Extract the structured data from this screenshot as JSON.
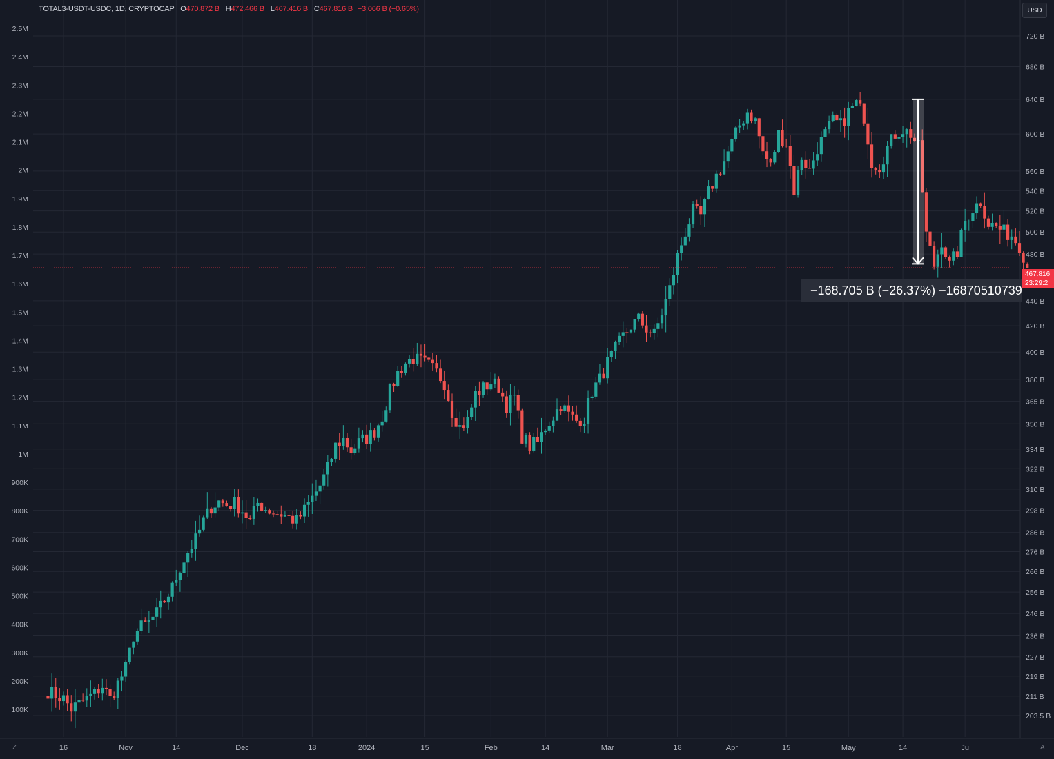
{
  "header": {
    "symbol": "TOTAL3-USDT-USDC, 1D, CRYPTOCAP",
    "open_label": "O",
    "open": "470.872 B",
    "high_label": "H",
    "high": "472.466 B",
    "low_label": "L",
    "low": "467.416 B",
    "close_label": "C",
    "close": "467.816 B",
    "change": "−3.066 B (−0.65%)"
  },
  "currency": "USD",
  "price_tag": {
    "price": "467.816",
    "countdown": "23:29:2"
  },
  "measure": {
    "text": "−168.705 B (−26.37%) −16870510739"
  },
  "corner": {
    "left": "Z",
    "right": "A"
  },
  "colors": {
    "background": "#161a25",
    "grid": "#242834",
    "up": "#26a69a",
    "down": "#ef5350",
    "axis_text": "#b2b5be",
    "price_line": "#f23645"
  },
  "chart_data": {
    "type": "candlestick",
    "title": "TOTAL3-USDT-USDC, 1D, CRYPTOCAP",
    "right_axis": {
      "scale": "log",
      "unit": "B",
      "ticks": [
        "720 B",
        "680 B",
        "640 B",
        "600 B",
        "560 B",
        "540 B",
        "520 B",
        "500 B",
        "480 B",
        "440 B",
        "420 B",
        "400 B",
        "380 B",
        "365 B",
        "350 B",
        "334 B",
        "322 B",
        "310 B",
        "298 B",
        "286 B",
        "276 B",
        "266 B",
        "256 B",
        "246 B",
        "236 B",
        "227 B",
        "219 B",
        "211 B",
        "203.5 B"
      ],
      "tick_values": [
        720,
        680,
        640,
        600,
        560,
        540,
        520,
        500,
        480,
        440,
        420,
        400,
        380,
        365,
        350,
        334,
        322,
        310,
        298,
        286,
        276,
        266,
        256,
        246,
        236,
        227,
        219,
        211,
        203.5
      ],
      "range": [
        203.5,
        720
      ]
    },
    "left_axis": {
      "ticks": [
        "2.5M",
        "2.4M",
        "2.3M",
        "2.2M",
        "2.1M",
        "2M",
        "1.9M",
        "1.8M",
        "1.7M",
        "1.6M",
        "1.5M",
        "1.4M",
        "1.3M",
        "1.2M",
        "1.1M",
        "1M",
        "900K",
        "800K",
        "700K",
        "600K",
        "500K",
        "400K",
        "300K",
        "200K",
        "100K"
      ]
    },
    "x_axis": {
      "ticks": [
        "16",
        "Nov",
        "14",
        "Dec",
        "18",
        "2024",
        "15",
        "Feb",
        "14",
        "Mar",
        "18",
        "Apr",
        "15",
        "May",
        "14",
        "Ju"
      ],
      "tick_days": [
        0,
        16,
        29,
        46,
        64,
        78,
        93,
        110,
        124,
        140,
        158,
        172,
        186,
        202,
        216,
        232
      ],
      "start_date": "2023-10-16"
    },
    "candle_anchors_close": [
      [
        -4,
        213
      ],
      [
        0,
        210
      ],
      [
        2,
        206
      ],
      [
        4,
        208
      ],
      [
        6,
        210
      ],
      [
        8,
        212
      ],
      [
        10,
        215
      ],
      [
        12,
        210
      ],
      [
        14,
        216
      ],
      [
        16,
        222
      ],
      [
        18,
        236
      ],
      [
        20,
        240
      ],
      [
        22,
        242
      ],
      [
        24,
        246
      ],
      [
        26,
        252
      ],
      [
        28,
        258
      ],
      [
        30,
        268
      ],
      [
        32,
        276
      ],
      [
        34,
        282
      ],
      [
        36,
        292
      ],
      [
        38,
        300
      ],
      [
        40,
        303
      ],
      [
        42,
        301
      ],
      [
        44,
        302
      ],
      [
        46,
        298
      ],
      [
        48,
        292
      ],
      [
        50,
        302
      ],
      [
        52,
        299
      ],
      [
        54,
        297
      ],
      [
        56,
        296
      ],
      [
        58,
        294
      ],
      [
        60,
        292
      ],
      [
        62,
        298
      ],
      [
        64,
        305
      ],
      [
        66,
        312
      ],
      [
        68,
        322
      ],
      [
        70,
        336
      ],
      [
        72,
        340
      ],
      [
        74,
        333
      ],
      [
        76,
        338
      ],
      [
        78,
        341
      ],
      [
        80,
        345
      ],
      [
        82,
        355
      ],
      [
        84,
        372
      ],
      [
        86,
        385
      ],
      [
        88,
        392
      ],
      [
        90,
        395
      ],
      [
        92,
        393
      ],
      [
        94,
        390
      ],
      [
        96,
        385
      ],
      [
        98,
        378
      ],
      [
        100,
        358
      ],
      [
        102,
        348
      ],
      [
        104,
        352
      ],
      [
        106,
        370
      ],
      [
        108,
        374
      ],
      [
        110,
        378
      ],
      [
        112,
        375
      ],
      [
        114,
        362
      ],
      [
        116,
        368
      ],
      [
        118,
        342
      ],
      [
        120,
        336
      ],
      [
        122,
        338
      ],
      [
        124,
        348
      ],
      [
        126,
        355
      ],
      [
        128,
        363
      ],
      [
        130,
        356
      ],
      [
        132,
        352
      ],
      [
        134,
        354
      ],
      [
        136,
        372
      ],
      [
        138,
        380
      ],
      [
        140,
        392
      ],
      [
        142,
        402
      ],
      [
        144,
        412
      ],
      [
        146,
        420
      ],
      [
        148,
        425
      ],
      [
        150,
        418
      ],
      [
        152,
        413
      ],
      [
        154,
        430
      ],
      [
        156,
        450
      ],
      [
        158,
        478
      ],
      [
        160,
        500
      ],
      [
        162,
        520
      ],
      [
        164,
        515
      ],
      [
        166,
        538
      ],
      [
        168,
        555
      ],
      [
        170,
        570
      ],
      [
        172,
        590
      ],
      [
        174,
        610
      ],
      [
        176,
        625
      ],
      [
        178,
        615
      ],
      [
        180,
        580
      ],
      [
        182,
        565
      ],
      [
        184,
        600
      ],
      [
        186,
        590
      ],
      [
        188,
        540
      ],
      [
        190,
        575
      ],
      [
        192,
        560
      ],
      [
        194,
        585
      ],
      [
        196,
        600
      ],
      [
        198,
        615
      ],
      [
        200,
        610
      ],
      [
        202,
        625
      ],
      [
        204,
        635
      ],
      [
        206,
        620
      ],
      [
        208,
        570
      ],
      [
        210,
        565
      ],
      [
        212,
        585
      ],
      [
        214,
        600
      ],
      [
        216,
        605
      ],
      [
        218,
        600
      ],
      [
        220,
        585
      ],
      [
        222,
        498
      ],
      [
        224,
        470
      ],
      [
        226,
        492
      ],
      [
        228,
        470
      ],
      [
        230,
        482
      ],
      [
        232,
        510
      ],
      [
        234,
        522
      ],
      [
        236,
        530
      ],
      [
        238,
        508
      ],
      [
        240,
        505
      ],
      [
        242,
        500
      ],
      [
        244,
        497
      ],
      [
        246,
        488
      ],
      [
        248,
        470
      ]
    ],
    "last_candle": {
      "open": 470.872,
      "high": 472.466,
      "low": 467.416,
      "close": 467.816
    },
    "current_price_line": 467.816,
    "measure_range": {
      "from": 640,
      "to": 471.295,
      "change": "−168.705 B",
      "percent": -26.37
    }
  }
}
